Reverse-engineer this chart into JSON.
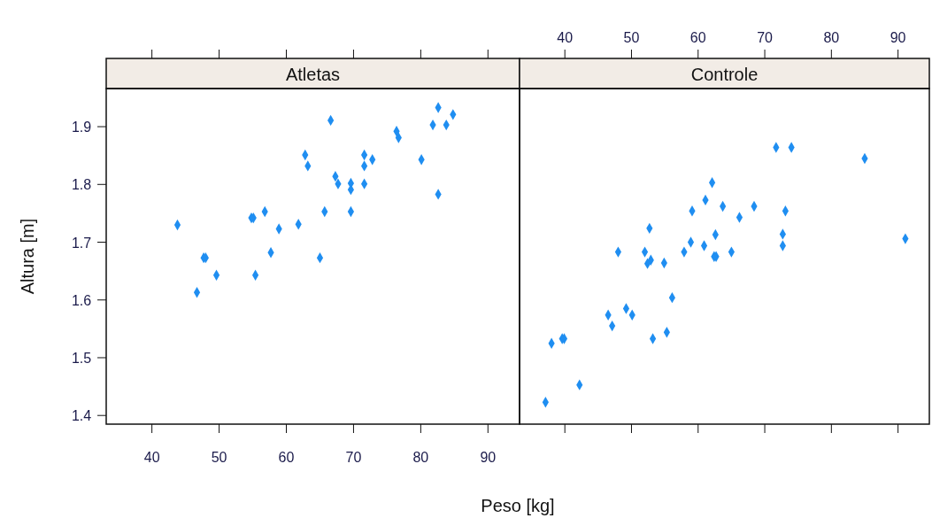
{
  "chart_data": [
    {
      "type": "scatter",
      "title": "Atletas",
      "xlabel": "Peso [kg]",
      "ylabel": "Altura [m]",
      "marker": "diamond",
      "grid": false,
      "xlim": [
        33.2,
        94.7
      ],
      "xticks": [
        40,
        50,
        60,
        70,
        80,
        90
      ],
      "ylim": [
        1.385,
        1.966
      ],
      "yticks": [
        1.4,
        1.5,
        1.6,
        1.7,
        1.8,
        1.9
      ],
      "series": [
        {
          "color": "#1f8ef1",
          "x": [
            43.8,
            47.7,
            48.0,
            49.6,
            46.7,
            54.8,
            55.1,
            56.8,
            58.9,
            55.4,
            57.7,
            61.8,
            65.0,
            65.7,
            62.8,
            63.2,
            66.6,
            67.3,
            67.7,
            69.6,
            69.6,
            69.6,
            71.6,
            71.6,
            72.8,
            71.6,
            76.4,
            76.7,
            80.1,
            82.6,
            81.8,
            83.8,
            84.8,
            82.6
          ],
          "values": [
            1.73,
            1.673,
            1.673,
            1.643,
            1.613,
            1.742,
            1.742,
            1.753,
            1.723,
            1.643,
            1.682,
            1.731,
            1.673,
            1.753,
            1.851,
            1.832,
            1.911,
            1.814,
            1.801,
            1.802,
            1.791,
            1.753,
            1.851,
            1.832,
            1.843,
            1.801,
            1.892,
            1.881,
            1.843,
            1.933,
            1.903,
            1.903,
            1.921,
            1.783
          ]
        }
      ]
    },
    {
      "type": "scatter",
      "title": "Controle",
      "marker": "diamond",
      "grid": false,
      "tick_labels": "x",
      "xlim": [
        33.2,
        94.7
      ],
      "xticks": [
        40,
        50,
        60,
        70,
        80,
        90
      ],
      "ylim": [
        1.385,
        1.966
      ],
      "yticks": [
        1.4,
        1.5,
        1.6,
        1.7,
        1.8,
        1.9
      ],
      "series": [
        {
          "color": "#1f8ef1",
          "x": [
            37.1,
            42.2,
            38.0,
            39.6,
            39.9,
            46.5,
            47.1,
            49.2,
            50.1,
            53.2,
            55.3,
            56.1,
            48.0,
            52.0,
            52.9,
            52.4,
            54.9,
            52.7,
            57.9,
            58.9,
            59.1,
            60.9,
            61.1,
            62.1,
            62.6,
            62.4,
            62.7,
            63.7,
            65.0,
            66.2,
            68.4,
            71.7,
            74.0,
            73.1,
            72.7,
            72.7,
            85.0,
            91.1
          ],
          "values": [
            1.423,
            1.453,
            1.525,
            1.533,
            1.533,
            1.574,
            1.555,
            1.585,
            1.574,
            1.533,
            1.544,
            1.604,
            1.683,
            1.683,
            1.669,
            1.663,
            1.664,
            1.724,
            1.683,
            1.7,
            1.754,
            1.694,
            1.773,
            1.803,
            1.713,
            1.675,
            1.675,
            1.762,
            1.683,
            1.743,
            1.762,
            1.864,
            1.864,
            1.754,
            1.714,
            1.694,
            1.845,
            1.706
          ]
        }
      ]
    }
  ]
}
